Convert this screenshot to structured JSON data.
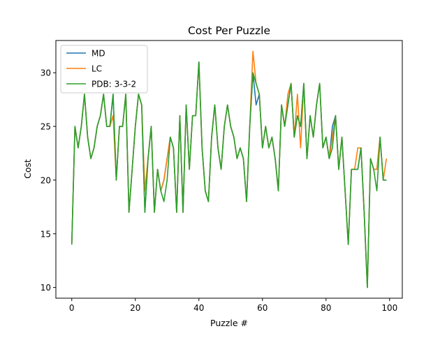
{
  "chart_data": {
    "type": "line",
    "title": "Cost Per Puzzle",
    "xlabel": "Puzzle #",
    "ylabel": "Cost",
    "xlim": [
      -5,
      104
    ],
    "ylim": [
      9.0,
      33.0
    ],
    "xticks": [
      0,
      20,
      40,
      60,
      80,
      100
    ],
    "yticks": [
      10,
      15,
      20,
      25,
      30
    ],
    "grid": false,
    "legend_position": "top-left",
    "x": [
      0,
      1,
      2,
      3,
      4,
      5,
      6,
      7,
      8,
      9,
      10,
      11,
      12,
      13,
      14,
      15,
      16,
      17,
      18,
      19,
      20,
      21,
      22,
      23,
      24,
      25,
      26,
      27,
      28,
      29,
      30,
      31,
      32,
      33,
      34,
      35,
      36,
      37,
      38,
      39,
      40,
      41,
      42,
      43,
      44,
      45,
      46,
      47,
      48,
      49,
      50,
      51,
      52,
      53,
      54,
      55,
      56,
      57,
      58,
      59,
      60,
      61,
      62,
      63,
      64,
      65,
      66,
      67,
      68,
      69,
      70,
      71,
      72,
      73,
      74,
      75,
      76,
      77,
      78,
      79,
      80,
      81,
      82,
      83,
      84,
      85,
      86,
      87,
      88,
      89,
      90,
      91,
      92,
      93,
      94,
      95,
      96,
      97,
      98,
      99
    ],
    "series": [
      {
        "name": "MD",
        "color": "#1f77b4",
        "values": [
          14,
          25,
          23,
          25,
          28,
          24,
          22,
          23,
          25,
          26,
          28,
          25,
          25,
          28,
          20,
          25,
          25,
          28,
          17,
          21,
          25,
          28,
          27,
          17,
          22,
          25,
          17,
          21,
          19,
          20,
          22,
          24,
          23,
          17,
          26,
          17,
          27,
          21,
          26,
          26,
          31,
          23,
          19,
          18,
          24,
          27,
          23,
          21,
          25,
          27,
          25,
          24,
          22,
          23,
          22,
          18,
          25,
          30,
          27,
          28,
          23,
          25,
          23,
          24,
          22,
          19,
          27,
          25,
          27,
          29,
          24,
          26,
          25,
          29,
          22,
          26,
          24,
          27,
          29,
          23,
          24,
          22,
          25,
          26,
          21,
          24,
          19,
          14,
          21,
          21,
          21,
          23,
          17,
          10,
          22,
          21,
          21,
          24,
          20,
          20
        ]
      },
      {
        "name": "LC",
        "color": "#ff7f0e",
        "values": [
          14,
          25,
          23,
          25,
          28,
          24,
          22,
          23,
          25,
          26,
          28,
          25,
          25,
          26,
          20,
          25,
          25,
          28,
          17,
          21,
          25,
          28,
          27,
          19,
          22,
          25,
          17,
          21,
          19,
          20,
          22,
          24,
          23,
          17,
          26,
          17,
          27,
          21,
          26,
          26,
          31,
          23,
          19,
          18,
          24,
          27,
          23,
          21,
          25,
          27,
          25,
          24,
          22,
          23,
          22,
          18,
          25,
          32,
          29,
          28,
          23,
          25,
          23,
          24,
          22,
          19,
          27,
          25,
          28,
          29,
          24,
          28,
          23,
          29,
          22,
          26,
          24,
          27,
          29,
          23,
          24,
          22,
          24,
          26,
          21,
          24,
          19,
          14,
          21,
          21,
          23,
          23,
          17,
          10,
          22,
          21,
          21,
          24,
          20,
          22
        ]
      },
      {
        "name": "PDB: 3-3-2",
        "color": "#2ca02c",
        "values": [
          14,
          25,
          23,
          25,
          28,
          24,
          22,
          23,
          25,
          26,
          28,
          25,
          25,
          28,
          20,
          25,
          25,
          28,
          17,
          21,
          25,
          28,
          27,
          17,
          22,
          25,
          17,
          21,
          19,
          18,
          20,
          24,
          23,
          17,
          26,
          17,
          27,
          21,
          26,
          26,
          31,
          23,
          19,
          18,
          24,
          27,
          23,
          21,
          25,
          27,
          25,
          24,
          22,
          23,
          22,
          18,
          25,
          30,
          29,
          28,
          23,
          25,
          23,
          24,
          22,
          19,
          27,
          25,
          27,
          29,
          24,
          26,
          25,
          29,
          22,
          26,
          24,
          27,
          29,
          23,
          24,
          22,
          23,
          26,
          21,
          24,
          19,
          14,
          21,
          21,
          21,
          23,
          17,
          10,
          22,
          21,
          19,
          24,
          20,
          20
        ]
      }
    ]
  }
}
